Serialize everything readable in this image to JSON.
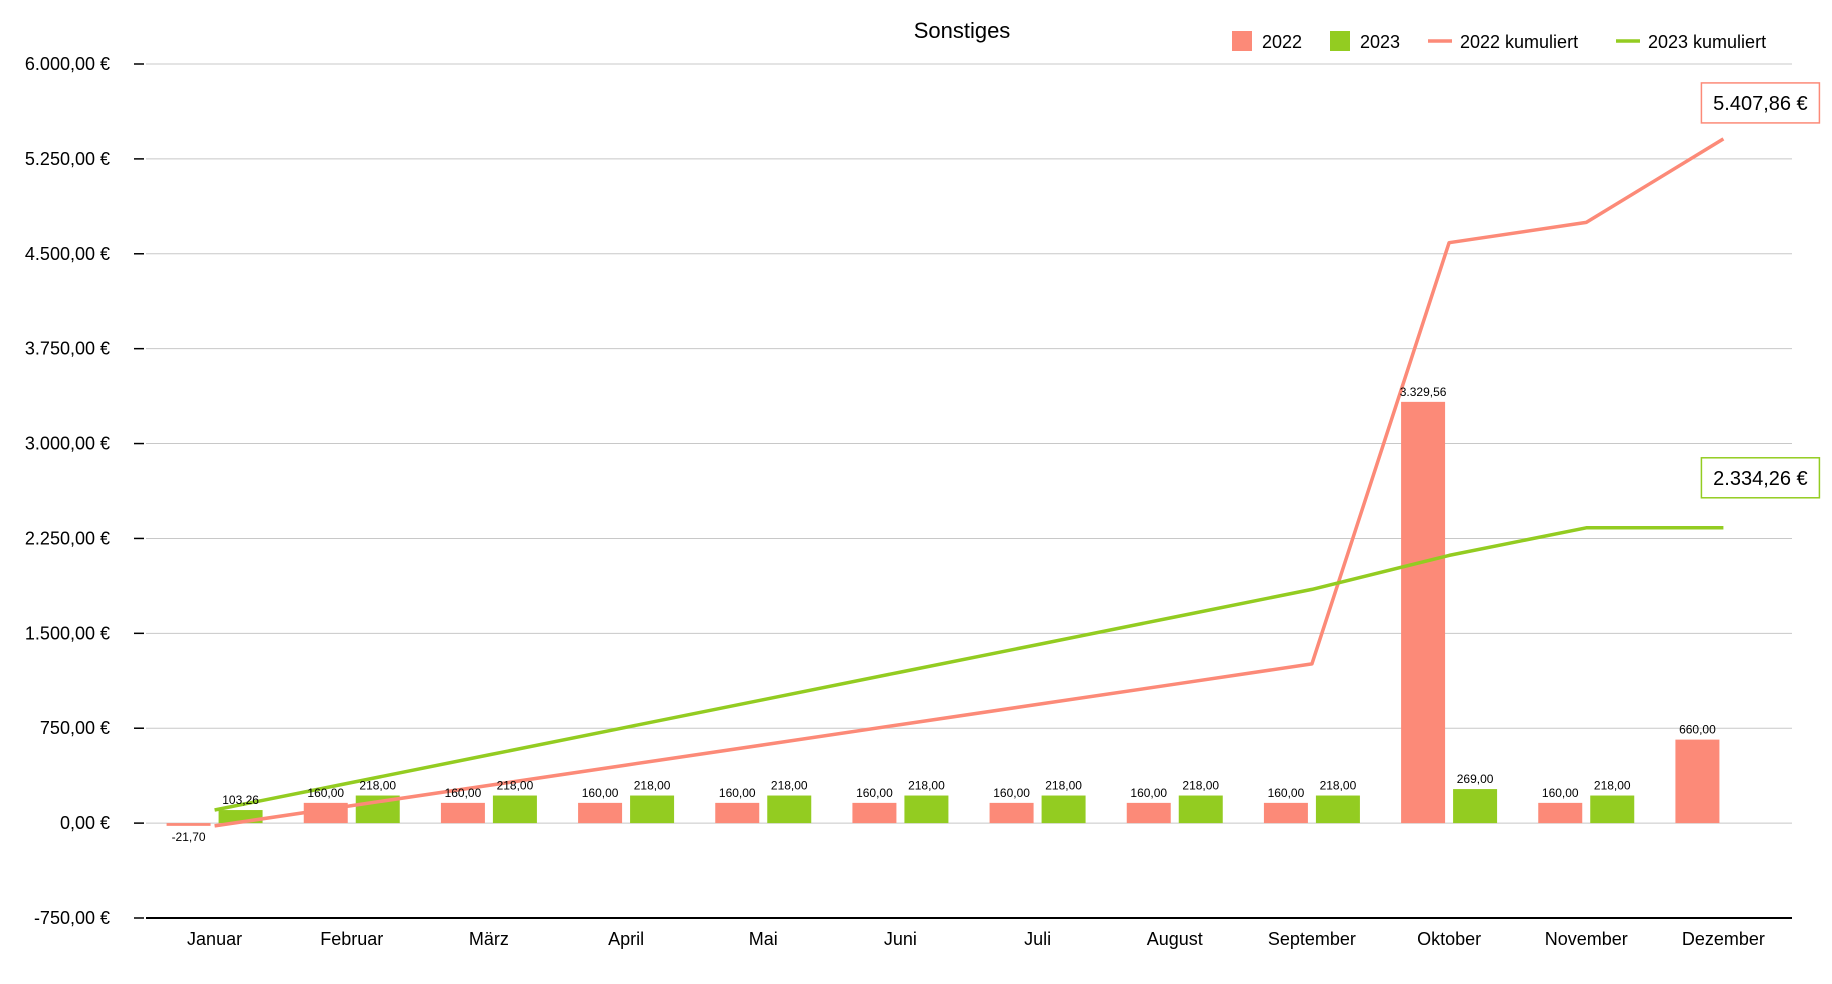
{
  "colors": {
    "series_2022": "#fc8a78",
    "series_2023": "#93cc21",
    "grid": "#c8c8c8",
    "axis": "#000000"
  },
  "chart_data": {
    "type": "bar",
    "title": "Sonstiges",
    "xlabel": "",
    "ylabel": "",
    "categories": [
      "Januar",
      "Februar",
      "März",
      "April",
      "Mai",
      "Juni",
      "Juli",
      "August",
      "September",
      "Oktober",
      "November",
      "Dezember"
    ],
    "ylim": [
      -750,
      6000
    ],
    "yticks": [
      -750,
      0,
      750,
      1500,
      2250,
      3000,
      3750,
      4500,
      5250,
      6000
    ],
    "ytick_labels": [
      "-750,00 €",
      "0,00 €",
      "750,00 €",
      "1.500,00 €",
      "2.250,00 €",
      "3.000,00 €",
      "3.750,00 €",
      "4.500,00 €",
      "5.250,00 €",
      "6.000,00 €"
    ],
    "grid": true,
    "legend_position": "top-right",
    "series": [
      {
        "name": "2022",
        "kind": "bar",
        "color": "#fc8a78",
        "values": [
          -21.7,
          160,
          160,
          160,
          160,
          160,
          160,
          160,
          160,
          3329.56,
          160,
          660
        ],
        "labels": [
          "-21,70",
          "160,00",
          "160,00",
          "160,00",
          "160,00",
          "160,00",
          "160,00",
          "160,00",
          "160,00",
          "3.329,56",
          "160,00",
          "660,00"
        ]
      },
      {
        "name": "2023",
        "kind": "bar",
        "color": "#93cc21",
        "values": [
          103.26,
          218,
          218,
          218,
          218,
          218,
          218,
          218,
          218,
          269,
          218,
          null
        ],
        "labels": [
          "103,26",
          "218,00",
          "218,00",
          "218,00",
          "218,00",
          "218,00",
          "218,00",
          "218,00",
          "218,00",
          "269,00",
          "218,00",
          ""
        ]
      },
      {
        "name": "2022 kumuliert",
        "kind": "line",
        "color": "#fc8a78",
        "values": [
          -21.7,
          138.3,
          298.3,
          458.3,
          618.3,
          778.3,
          938.3,
          1098.3,
          1258.3,
          4587.86,
          4747.86,
          5407.86
        ],
        "end_label": "5.407,86 €"
      },
      {
        "name": "2023 kumuliert",
        "kind": "line",
        "color": "#93cc21",
        "values": [
          103.26,
          321.26,
          539.26,
          757.26,
          975.26,
          1193.26,
          1411.26,
          1629.26,
          1847.26,
          2116.26,
          2334.26,
          2334.26
        ],
        "end_label": "2.334,26 €"
      }
    ]
  }
}
